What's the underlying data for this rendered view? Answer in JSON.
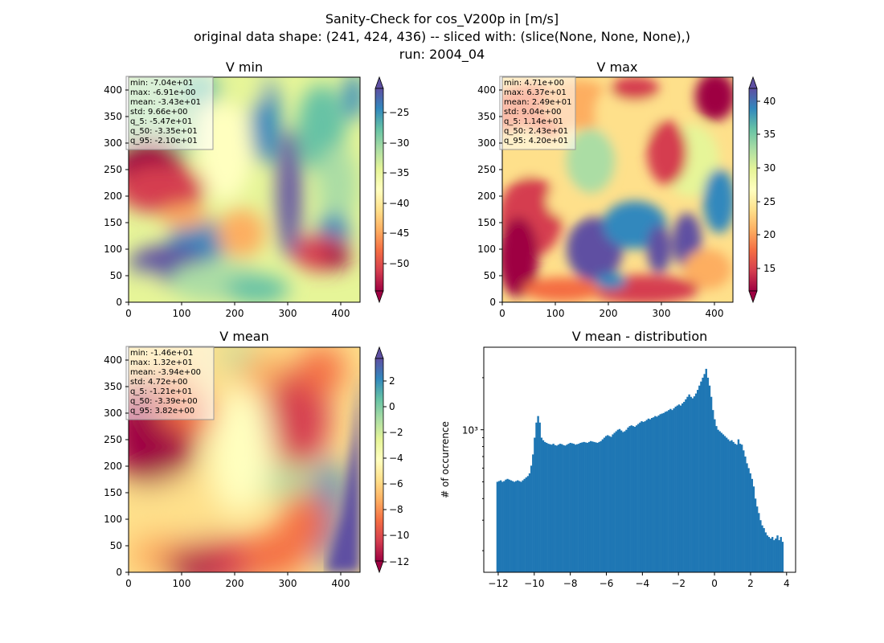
{
  "title": {
    "line1": "Sanity-Check for cos_V200p in [m/s]",
    "line2": "original data shape: (241, 424, 436) -- sliced with: (slice(None, None, None),)",
    "line3": "run: 2004_04"
  },
  "chart_data": [
    {
      "type": "heatmap",
      "title": "V min",
      "xlim": [
        0,
        436
      ],
      "ylim": [
        0,
        424
      ],
      "xticks": [
        "0",
        "100",
        "200",
        "300",
        "400"
      ],
      "yticks": [
        "0",
        "50",
        "100",
        "150",
        "200",
        "250",
        "300",
        "350",
        "400"
      ],
      "colormap": "Spectral",
      "colorbar": {
        "range": [
          -54.7,
          -21.0
        ],
        "ticks": [
          "−50",
          "−45",
          "−40",
          "−35",
          "−30",
          "−25"
        ],
        "extend": "both"
      },
      "stats": [
        "min: -7.04e+01",
        "max: -6.91e+00",
        "mean: -3.43e+01",
        "std: 9.66e+00",
        "q_5: -5.47e+01",
        "q_50: -3.35e+01",
        "q_95: -2.10e+01"
      ]
    },
    {
      "type": "heatmap",
      "title": "V max",
      "xlim": [
        0,
        436
      ],
      "ylim": [
        0,
        424
      ],
      "xticks": [
        "0",
        "100",
        "200",
        "300",
        "400"
      ],
      "yticks": [
        "0",
        "50",
        "100",
        "150",
        "200",
        "250",
        "300",
        "350",
        "400"
      ],
      "colormap": "Spectral",
      "colorbar": {
        "range": [
          11.4,
          42.0
        ],
        "ticks": [
          "15",
          "20",
          "25",
          "30",
          "35",
          "40"
        ],
        "extend": "both"
      },
      "stats": [
        "min: 4.71e+00",
        "max: 6.37e+01",
        "mean: 2.49e+01",
        "std: 9.04e+00",
        "q_5: 1.14e+01",
        "q_50: 2.43e+01",
        "q_95: 4.20e+01"
      ]
    },
    {
      "type": "heatmap",
      "title": "V mean",
      "xlim": [
        0,
        436
      ],
      "ylim": [
        0,
        424
      ],
      "xticks": [
        "0",
        "100",
        "200",
        "300",
        "400"
      ],
      "yticks": [
        "0",
        "50",
        "100",
        "150",
        "200",
        "250",
        "300",
        "350",
        "400"
      ],
      "colormap": "Spectral",
      "colorbar": {
        "range": [
          -12.1,
          3.82
        ],
        "ticks": [
          "−12",
          "−10",
          "−8",
          "−6",
          "−4",
          "−2",
          "0",
          "2"
        ],
        "extend": "both"
      },
      "stats": [
        "min: -1.46e+01",
        "max: 1.32e+01",
        "mean: -3.94e+00",
        "std: 4.72e+00",
        "q_5: -1.21e+01",
        "q_50: -3.39e+00",
        "q_95: 3.82e+00"
      ]
    },
    {
      "type": "bar",
      "title": "V mean - distribution",
      "xlabel": "",
      "ylabel": "# of occurrence",
      "yscale": "log",
      "xlim": [
        -12.8,
        4.5
      ],
      "ylim": [
        150,
        3000
      ],
      "xticks": [
        -12,
        -10,
        -8,
        -6,
        -4,
        -2,
        0,
        2,
        4
      ],
      "xticklabels": [
        "−12",
        "−10",
        "−8",
        "−6",
        "−4",
        "−2",
        "0",
        "2",
        "4"
      ],
      "ytick_major": {
        "value": 1000,
        "label": "10³"
      },
      "ytick_minor": [
        200,
        300,
        400,
        500,
        600,
        700,
        800,
        900,
        2000
      ],
      "color": "#1f77b4",
      "bin_start": -12.1,
      "bin_end": 3.82,
      "counts": [
        500,
        505,
        510,
        500,
        505,
        515,
        520,
        515,
        510,
        505,
        500,
        505,
        510,
        505,
        500,
        510,
        520,
        530,
        540,
        560,
        620,
        720,
        900,
        1100,
        1200,
        1100,
        900,
        870,
        850,
        840,
        830,
        825,
        820,
        830,
        815,
        810,
        820,
        830,
        825,
        815,
        810,
        820,
        830,
        840,
        835,
        830,
        820,
        825,
        830,
        840,
        845,
        850,
        845,
        840,
        850,
        860,
        855,
        850,
        845,
        840,
        850,
        860,
        880,
        900,
        920,
        930,
        920,
        910,
        940,
        960,
        980,
        1000,
        1010,
        990,
        970,
        980,
        1000,
        1030,
        1050,
        1060,
        1050,
        1040,
        1060,
        1080,
        1100,
        1120,
        1110,
        1120,
        1140,
        1160,
        1150,
        1170,
        1180,
        1200,
        1190,
        1210,
        1230,
        1240,
        1250,
        1270,
        1280,
        1300,
        1320,
        1300,
        1330,
        1360,
        1380,
        1400,
        1380,
        1420,
        1450,
        1500,
        1550,
        1600,
        1550,
        1520,
        1560,
        1620,
        1700,
        1800,
        1900,
        2000,
        2100,
        2250,
        2000,
        1800,
        1550,
        1300,
        1150,
        1050,
        1000,
        980,
        960,
        940,
        920,
        900,
        880,
        860,
        870,
        850,
        830,
        820,
        880,
        830,
        820,
        760,
        700,
        640,
        600,
        560,
        520,
        470,
        400,
        360,
        330,
        300,
        280,
        270,
        255,
        245,
        240,
        235,
        240,
        230,
        235,
        245,
        230,
        240,
        225
      ]
    }
  ]
}
